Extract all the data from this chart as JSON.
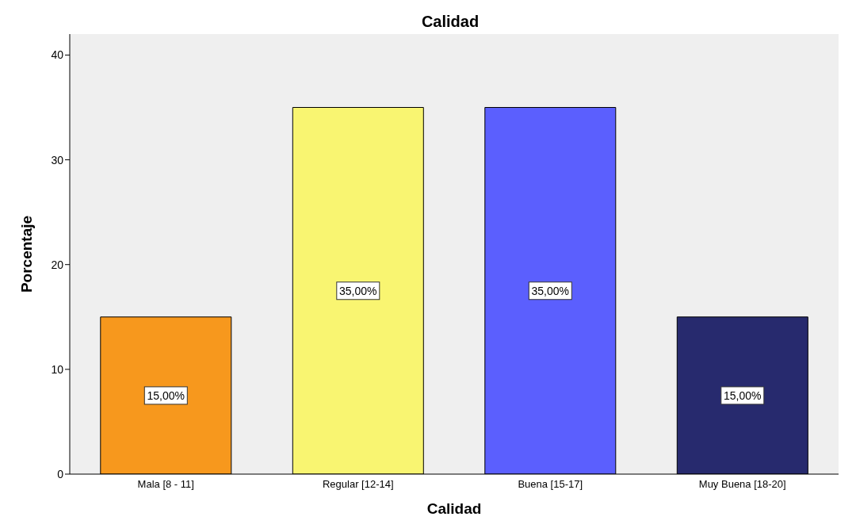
{
  "chart_data": {
    "type": "bar",
    "title": "Calidad",
    "xlabel": "Calidad",
    "ylabel": "Porcentaje",
    "categories": [
      "Mala [8 - 11]",
      "Regular [12-14]",
      "Buena [15-17]",
      "Muy Buena [18-20]"
    ],
    "values": [
      15,
      35,
      35,
      15
    ],
    "value_labels": [
      "15,00%",
      "35,00%",
      "35,00%",
      "15,00%"
    ],
    "colors": [
      "#f7981d",
      "#f9f571",
      "#5b5ffe",
      "#272a6e"
    ],
    "ylim": [
      0,
      42
    ],
    "yticks": [
      0,
      10,
      20,
      30,
      40
    ],
    "grid": false
  }
}
